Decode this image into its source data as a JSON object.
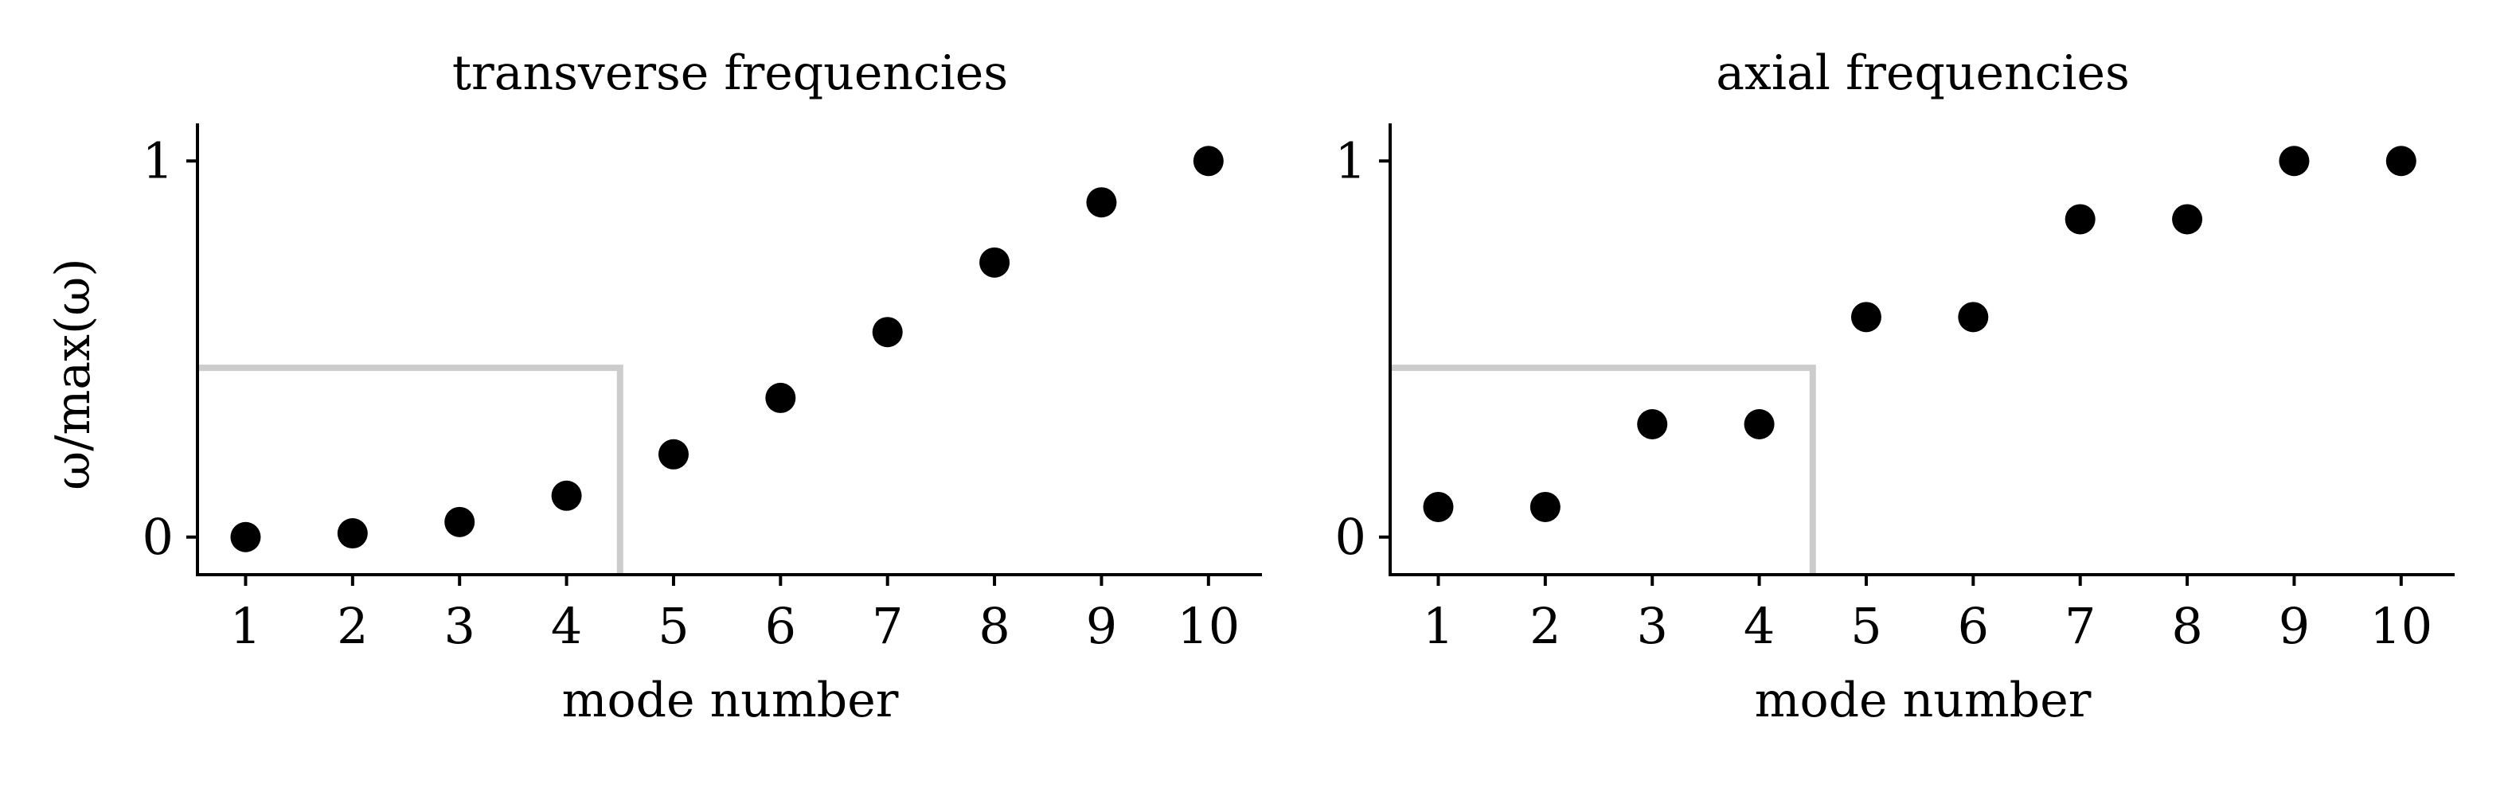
{
  "figure": {
    "ylabel": "ω/max(ω)"
  },
  "chart_data": [
    {
      "type": "scatter",
      "title": "transverse frequencies",
      "xlabel": "mode number",
      "x": [
        1,
        2,
        3,
        4,
        5,
        6,
        7,
        8,
        9,
        10
      ],
      "y": [
        0.0,
        0.01,
        0.04,
        0.11,
        0.22,
        0.37,
        0.545,
        0.73,
        0.89,
        1.0
      ],
      "xticks": [
        "1",
        "2",
        "3",
        "4",
        "5",
        "6",
        "7",
        "8",
        "9",
        "10"
      ],
      "yticks": [
        "0",
        "1"
      ],
      "xlim": [
        0.55,
        10.5
      ],
      "ylim": [
        -0.1,
        1.1
      ],
      "marker_color": "#000000",
      "threshold_box": {
        "x_end": 4.5,
        "y_level": 0.45,
        "color": "#cccccc"
      }
    },
    {
      "type": "scatter",
      "title": "axial frequencies",
      "xlabel": "mode number",
      "x": [
        1,
        2,
        3,
        4,
        5,
        6,
        7,
        8,
        9,
        10
      ],
      "y": [
        0.08,
        0.08,
        0.3,
        0.3,
        0.585,
        0.585,
        0.845,
        0.845,
        1.0,
        1.0
      ],
      "xticks": [
        "1",
        "2",
        "3",
        "4",
        "5",
        "6",
        "7",
        "8",
        "9",
        "10"
      ],
      "yticks": [
        "0",
        "1"
      ],
      "xlim": [
        0.55,
        10.5
      ],
      "ylim": [
        -0.1,
        1.1
      ],
      "marker_color": "#000000",
      "threshold_box": {
        "x_end": 4.5,
        "y_level": 0.45,
        "color": "#cccccc"
      }
    }
  ]
}
